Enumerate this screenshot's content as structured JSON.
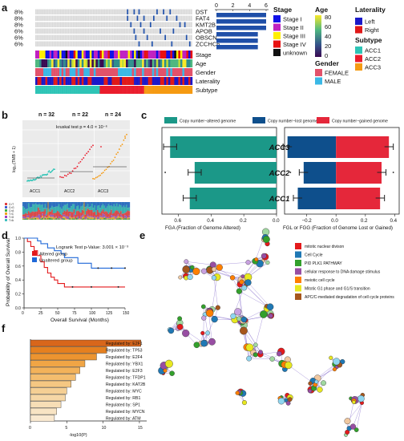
{
  "panels": {
    "a": "a",
    "b": "b",
    "c": "c",
    "d": "d",
    "e": "e",
    "f": "f"
  },
  "panel_a": {
    "genes": [
      {
        "pct": "8%",
        "name": "DST"
      },
      {
        "pct": "8%",
        "name": "FAT4"
      },
      {
        "pct": "8%",
        "name": "KMT2B"
      },
      {
        "pct": "6%",
        "name": "APOB"
      },
      {
        "pct": "6%",
        "name": "OBSCN"
      },
      {
        "pct": "6%",
        "name": "ZCCHC6"
      }
    ],
    "bar_axis_ticks": [
      "0",
      "2",
      "4",
      "6"
    ],
    "bar_counts": [
      6,
      6,
      6,
      5,
      5,
      5
    ],
    "bar_axis_max": 6,
    "track_labels": [
      "Stage",
      "Age",
      "Gender",
      "Laterality",
      "Subtype"
    ],
    "legend_stage": {
      "title": "Stage",
      "items": [
        {
          "label": "Stage I",
          "color": "#1010e8"
        },
        {
          "label": "Stage II",
          "color": "#c020c0"
        },
        {
          "label": "Stage III",
          "color": "#ffee00"
        },
        {
          "label": "Stage IV",
          "color": "#e81010"
        },
        {
          "label": "unknown",
          "color": "#111111"
        }
      ]
    },
    "legend_age": {
      "title": "Age",
      "ticks": [
        "80",
        "60",
        "40",
        "20",
        "0"
      ]
    },
    "legend_gender": {
      "title": "Gender",
      "items": [
        {
          "label": "FEMALE",
          "color": "#e2526a"
        },
        {
          "label": "MALE",
          "color": "#3ab8e6"
        }
      ]
    },
    "legend_laterality": {
      "title": "Laterality",
      "items": [
        {
          "label": "Left",
          "color": "#1a18c8"
        },
        {
          "label": "Right",
          "color": "#e01818"
        }
      ]
    },
    "legend_subtype": {
      "title": "Subtype",
      "items": [
        {
          "label": "ACC1",
          "color": "#2ec4b6"
        },
        {
          "label": "ACC2",
          "color": "#ea1c2c"
        },
        {
          "label": "ACC3",
          "color": "#f59a12"
        }
      ]
    }
  },
  "panel_b": {
    "n_labels": [
      "n = 32",
      "n = 22",
      "n = 24"
    ],
    "test_text": "kruskal test p = 4.0 × 10⁻⁶",
    "ylabel": "log₁₀(TMB + 1)",
    "groups": [
      "ACC1",
      "ACC2",
      "ACC3"
    ],
    "mini_legend": [
      "C>T",
      "C>G",
      "C>A",
      "T>C",
      "T>G",
      "T>A"
    ]
  },
  "panel_c": {
    "legend": [
      {
        "label": "Copy number−altered genome",
        "color": "#1b9888"
      },
      {
        "label": "Copy number−lost genome",
        "color": "#0e4f8c"
      },
      {
        "label": "Copy number−gained genome",
        "color": "#e5273a"
      }
    ],
    "row_labels": [
      {
        "label": "ACC3",
        "color": "#f59a12"
      },
      {
        "label": "ACC2",
        "color": "#ea1c2c"
      },
      {
        "label": "ACC1",
        "color": "#2ec4b6"
      }
    ],
    "left_ticks": [
      "0.6",
      "0.4",
      "0.2",
      "0.0"
    ],
    "right_ticks": [
      "−0.2",
      "0.0",
      "0.2",
      "0.4"
    ],
    "xlabel_left": "FGA (Fraction of Genome Altered)",
    "xlabel_right": "FGL or FGG (Fraction of Genome Lost or Gained)"
  },
  "chart_data": [
    {
      "type": "bar",
      "title": "",
      "xlabel": "FGA (Fraction of Genome Altered)",
      "categories": [
        "ACC3",
        "ACC2",
        "ACC1"
      ],
      "values": [
        0.65,
        0.5,
        0.53
      ],
      "xlim": [
        0.7,
        0.0
      ]
    },
    {
      "type": "bar",
      "title": "",
      "xlabel": "FGL or FGG (Fraction of Genome Lost or Gained)",
      "categories": [
        "ACC3",
        "ACC2",
        "ACC1"
      ],
      "series": [
        {
          "name": "Copy number−lost genome",
          "values": [
            -0.33,
            -0.22,
            -0.26
          ]
        },
        {
          "name": "Copy number−gained genome",
          "values": [
            0.36,
            0.31,
            0.3
          ]
        }
      ],
      "xlim": [
        -0.35,
        0.43
      ]
    },
    {
      "type": "line",
      "title": "Logrank Test p-Value: 3.001 × 10⁻³",
      "xlabel": "Overall Survival (Months)",
      "ylabel": "Probability of Overall Survival",
      "ylim": [
        0.0,
        1.0
      ],
      "xlim": [
        0,
        150
      ],
      "series": [
        {
          "name": "Altered group",
          "x": [
            0,
            5,
            10,
            15,
            20,
            25,
            30,
            35,
            40,
            45,
            50,
            60,
            75,
            150
          ],
          "y": [
            1.0,
            0.95,
            0.88,
            0.82,
            0.75,
            0.66,
            0.58,
            0.5,
            0.44,
            0.4,
            0.35,
            0.3,
            0.3,
            0.3
          ]
        },
        {
          "name": "Unaltered group",
          "x": [
            0,
            10,
            20,
            25,
            35,
            45,
            55,
            60,
            80,
            100,
            150
          ],
          "y": [
            1.0,
            1.0,
            0.96,
            0.92,
            0.86,
            0.82,
            0.78,
            0.72,
            0.64,
            0.57,
            0.57
          ]
        }
      ]
    },
    {
      "type": "bar",
      "title": "",
      "xlabel": "-log10(P)",
      "xlim": [
        0,
        16
      ],
      "categories": [
        "Regulated by: E2F1",
        "Regulated by: TP53",
        "Regulated by: E2F4",
        "Regulated by: YBX1",
        "Regulated by: E2F3",
        "Regulated by: TFDP1",
        "Regulated by: KAT2B",
        "Regulated by: MYC",
        "Regulated by: RB1",
        "Regulated by: SP1",
        "Regulated by: MYCN",
        "Regulated by: ATM"
      ],
      "values": [
        15.2,
        10.5,
        9.1,
        7.5,
        6.8,
        6.2,
        5.6,
        5.0,
        4.8,
        4.2,
        3.6,
        3.3
      ]
    }
  ],
  "panel_d": {
    "xticks": [
      "0",
      "25",
      "50",
      "75",
      "100",
      "125",
      "150"
    ],
    "yticks": [
      "0.0",
      "0.2",
      "0.4",
      "0.6",
      "0.8",
      "1.0"
    ],
    "legend": [
      {
        "label": "Altered group",
        "color": "#e31a1c"
      },
      {
        "label": "Unaltered group",
        "color": "#1f68d8"
      }
    ]
  },
  "panel_e": {
    "legend": [
      {
        "label": "mitotic nuclear divison",
        "color": "#e41a1c"
      },
      {
        "label": "Cell Cycle",
        "color": "#1f78b4"
      },
      {
        "label": "PID PLK1 PATHWAY",
        "color": "#33a02c"
      },
      {
        "label": "cellular response to DNA damage stimulus",
        "color": "#984ea3"
      },
      {
        "label": "meiotic cell cycle",
        "color": "#ff7f00"
      },
      {
        "label": "Mitotic G1 phase and G1/S transition",
        "color": "#e8e820"
      },
      {
        "label": "APC/C-mediated degradation of cell cycle proteins",
        "color": "#a6561c"
      }
    ]
  },
  "panel_f": {
    "xticks": [
      "0",
      "5",
      "10",
      "15"
    ]
  }
}
